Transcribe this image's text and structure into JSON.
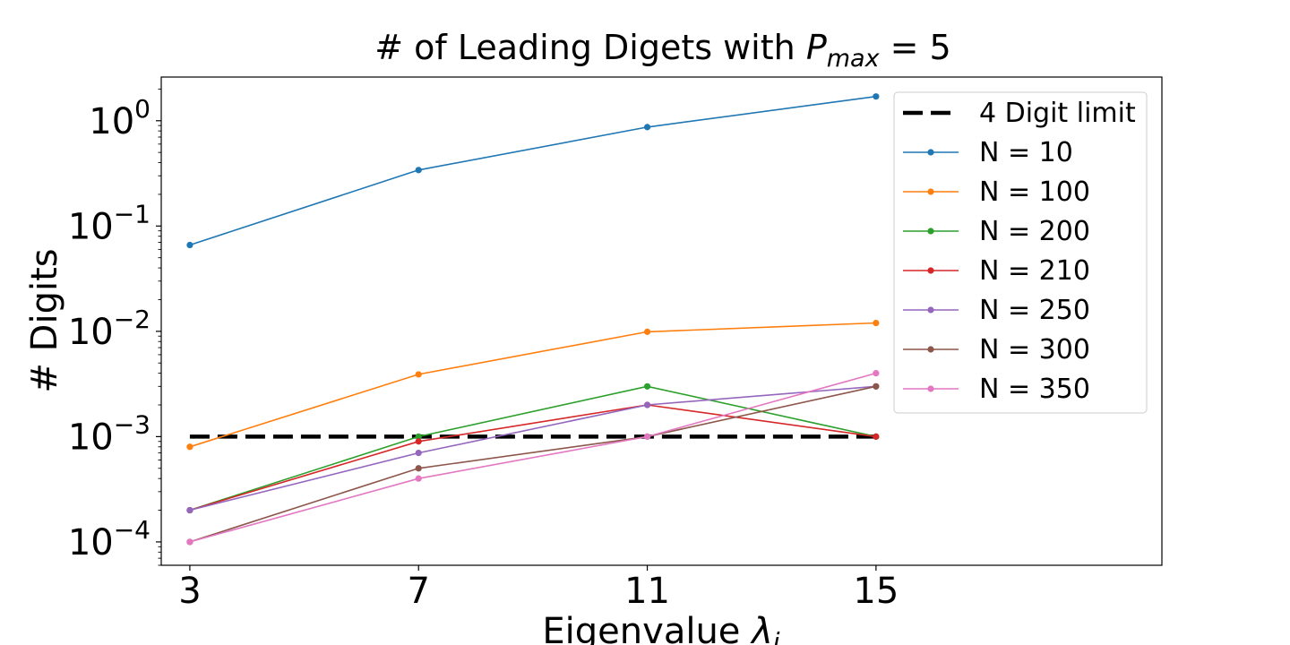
{
  "chart_data": {
    "type": "line",
    "title": {
      "prefix": "# of Leading Digets with ",
      "symbol": "P",
      "subscript": "max",
      "suffix": " = 5"
    },
    "xlabel": {
      "text": "Eigenvalue ",
      "symbol": "λ",
      "subscript": "i"
    },
    "ylabel": "# Digits",
    "x": [
      3,
      7,
      11,
      15
    ],
    "xlim": [
      2.5,
      20.0
    ],
    "yscale": "log",
    "ylim": [
      6e-05,
      2.6
    ],
    "y_ticks": [
      {
        "value": 0.0001,
        "base": "10",
        "exp": "−4"
      },
      {
        "value": 0.001,
        "base": "10",
        "exp": "−3"
      },
      {
        "value": 0.01,
        "base": "10",
        "exp": "−2"
      },
      {
        "value": 0.1,
        "base": "10",
        "exp": "−1"
      },
      {
        "value": 1,
        "base": "10",
        "exp": "0"
      }
    ],
    "grid": false,
    "legend_position": "upper right",
    "reference_line": {
      "name": "4 Digit limit",
      "value": 0.001,
      "x": [
        3,
        15
      ],
      "color": "#000000",
      "style": "dashed"
    },
    "series": [
      {
        "name": "N = 10",
        "color": "#1f77b4",
        "values": [
          0.066,
          0.34,
          0.87,
          1.7
        ]
      },
      {
        "name": "N = 100",
        "color": "#ff7f0e",
        "values": [
          0.0008,
          0.0039,
          0.0099,
          0.012
        ]
      },
      {
        "name": "N = 200",
        "color": "#2ca02c",
        "values": [
          0.0002,
          0.001,
          0.003,
          0.001
        ]
      },
      {
        "name": "N = 210",
        "color": "#d62728",
        "values": [
          0.0002,
          0.0009,
          0.002,
          0.001
        ]
      },
      {
        "name": "N = 250",
        "color": "#9467bd",
        "values": [
          0.0002,
          0.0007,
          0.002,
          0.003
        ]
      },
      {
        "name": "N = 300",
        "color": "#8c564b",
        "values": [
          0.0001,
          0.0005,
          0.001,
          0.003
        ]
      },
      {
        "name": "N = 350",
        "color": "#e377c2",
        "values": [
          0.0001,
          0.0004,
          0.001,
          0.004
        ]
      }
    ]
  }
}
